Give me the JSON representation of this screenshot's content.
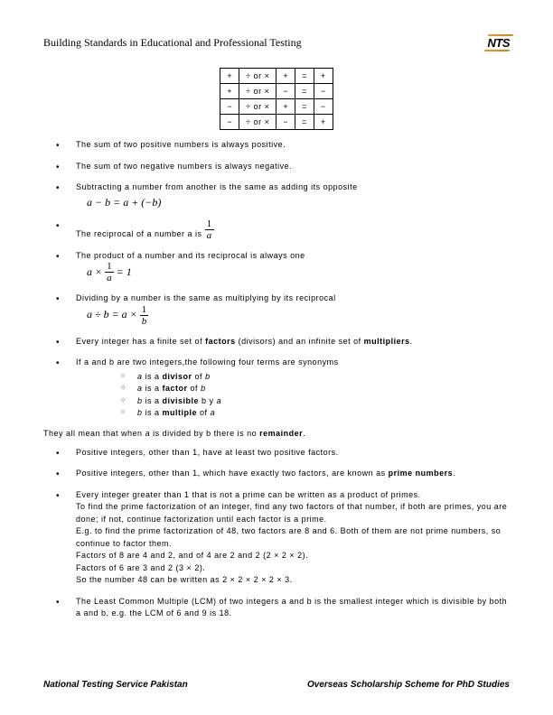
{
  "header": {
    "title": "Building Standards in Educational and Professional Testing",
    "logo_text": "NTS"
  },
  "sign_table": {
    "rows": [
      [
        "+",
        "÷ or ×",
        "+",
        "=",
        "+"
      ],
      [
        "+",
        "÷ or ×",
        "−",
        "=",
        "−"
      ],
      [
        "−",
        "÷ or ×",
        "+",
        "=",
        "−"
      ],
      [
        "−",
        "÷ or ×",
        "−",
        "=",
        "+"
      ]
    ]
  },
  "bullets": {
    "b1": "The sum of two positive numbers is always positive.",
    "b2": "The sum of two negative numbers is always negative.",
    "b3": "Subtracting a number from another is the same as adding its opposite",
    "b3_math": "a − b = a + (−b)",
    "b4_pre": "The reciprocal of a number a is ",
    "b4_frac_num": "1",
    "b4_frac_den": "a",
    "b5": "The product of a number and its reciprocal is always one",
    "b5_math_a": "a ×",
    "b5_math_frac_num": "1",
    "b5_math_frac_den": "a",
    "b5_math_eq": "= 1",
    "b6": "Dividing by a number is the same as multiplying by its reciprocal",
    "b6_math_a": "a ÷ b = a ×",
    "b6_math_frac_num": "1",
    "b6_math_frac_den": "b",
    "b7_pre": "Every integer has a finite set of ",
    "b7_bold1": "factors",
    "b7_mid": " (divisors) and an infinite set of ",
    "b7_bold2": "multipliers",
    "b7_post": ".",
    "b8": "If a and b are two integers,the following four terms are synonyms",
    "b8_sub1_a": "a",
    "b8_sub1_mid": " is a ",
    "b8_sub1_bold": "divisor",
    "b8_sub1_post": " of ",
    "b8_sub1_b": "b",
    "b8_sub2_a": "a",
    "b8_sub2_mid": " is a ",
    "b8_sub2_bold": "factor",
    "b8_sub2_post": " of ",
    "b8_sub2_b": "b",
    "b8_sub3_a": "b",
    "b8_sub3_mid": " is a ",
    "b8_sub3_bold": "divisible",
    "b8_sub3_post": " b y ",
    "b8_sub3_b": "a",
    "b8_sub4_a": "b",
    "b8_sub4_mid": " is a ",
    "b8_sub4_bold": "multiple",
    "b8_sub4_post": " of ",
    "b8_sub4_b": "a",
    "para1_pre": "They all mean that when ",
    "para1_a": "a",
    "para1_mid": " is divided by b there is no ",
    "para1_bold": "remainder",
    "para1_post": ".",
    "b9": "Positive integers, other than 1, have at least two positive factors.",
    "b10_pre": "Positive integers, other than 1, which have exactly two factors, are known as ",
    "b10_bold": "prime numbers",
    "b10_post": ".",
    "b11_l1": "Every integer greater than 1 that is not a prime can be written as a product of primes.",
    "b11_l2": "To find the prime factorization of an integer, find any two factors of that number, if both are primes, you are done; if not, continue factorization until each factor is a prime.",
    "b11_l3": "E.g. to find the prime factorization of 48, two factors are 8 and 6.  Both of them are not prime numbers, so continue to factor them.",
    "b11_l4": "Factors of 8 are 4 and 2, and of 4 are 2 and 2 (2 × 2 × 2).",
    "b11_l5": "Factors of 6 are 3 and 2 (3 × 2).",
    "b11_l6": "So the number 48 can be written as 2 × 2 × 2 × 2 × 3.",
    "b12": "The Least Common Multiple (LCM) of two integers a and b is the smallest integer which is divisible by both a and b, e.g. the LCM of 6 and 9 is 18."
  },
  "footer": {
    "left": "National Testing Service Pakistan",
    "right_bold": "Overseas",
    "right_rest": " Scholarship Scheme for PhD Studies"
  }
}
